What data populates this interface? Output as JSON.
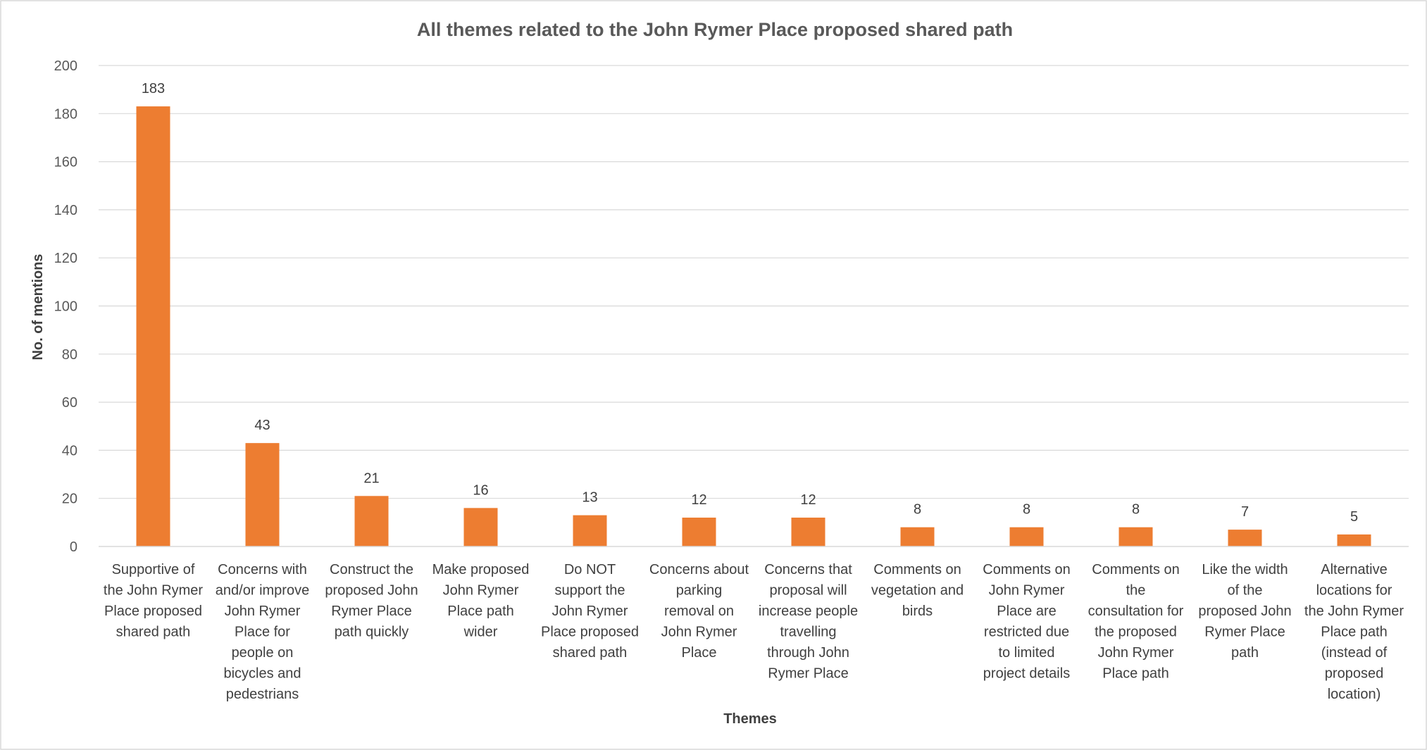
{
  "chart_data": {
    "type": "bar",
    "title": "All themes related to the John Rymer Place proposed shared path",
    "xlabel": "Themes",
    "ylabel": "No. of mentions",
    "ylim": [
      0,
      200
    ],
    "yticks": [
      0,
      20,
      40,
      60,
      80,
      100,
      120,
      140,
      160,
      180,
      200
    ],
    "grid": true,
    "legend": "none",
    "bar_color": "#ED7D31",
    "categories": [
      [
        "Supportive of",
        "the John Rymer",
        "Place proposed",
        "shared path"
      ],
      [
        "Concerns with",
        "and/or improve",
        "John Rymer",
        "Place for",
        "people on",
        "bicycles and",
        "pedestrians"
      ],
      [
        "Construct the",
        "proposed John",
        "Rymer Place",
        "path quickly"
      ],
      [
        "Make proposed",
        "John Rymer",
        "Place path",
        "wider"
      ],
      [
        "Do NOT",
        "support the",
        "John Rymer",
        "Place proposed",
        "shared path"
      ],
      [
        "Concerns about",
        "parking",
        "removal on",
        "John Rymer",
        "Place"
      ],
      [
        "Concerns that",
        "proposal will",
        "increase people",
        "travelling",
        "through John",
        "Rymer Place"
      ],
      [
        "Comments on",
        "vegetation and",
        "birds"
      ],
      [
        "Comments on",
        "John Rymer",
        "Place are",
        "restricted due",
        "to limited",
        "project details"
      ],
      [
        "Comments on",
        "the",
        "consultation for",
        "the proposed",
        "John Rymer",
        "Place path"
      ],
      [
        "Like the width",
        "of the",
        "proposed John",
        "Rymer Place",
        "path"
      ],
      [
        "Alternative",
        "locations for",
        "the John Rymer",
        "Place path",
        "(instead of",
        "proposed",
        "location)"
      ]
    ],
    "values": [
      183,
      43,
      21,
      16,
      13,
      12,
      12,
      8,
      8,
      8,
      7,
      5
    ]
  }
}
